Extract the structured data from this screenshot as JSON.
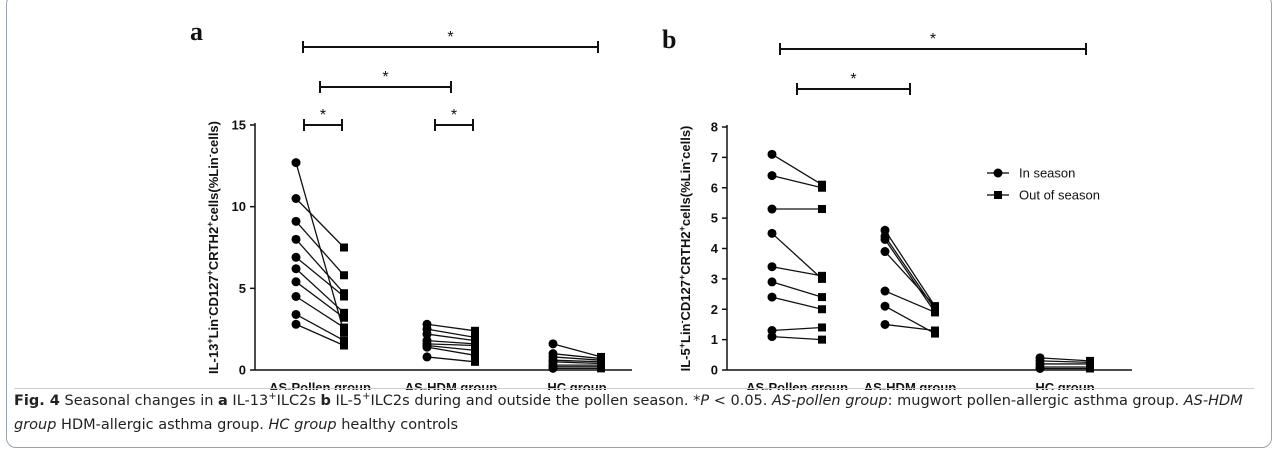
{
  "chart_data": [
    {
      "type": "paired",
      "panel": "a",
      "y_label": [
        "IL-13",
        "+",
        "Lin",
        "-",
        "CD127",
        "+",
        "CRTH2",
        "+",
        "cells(%Lin",
        "-",
        "cells)"
      ],
      "categories": [
        "AS-Pollen group",
        "AS-HDM group",
        "HC group"
      ],
      "ylim": [
        0,
        15
      ],
      "yticks": [
        0,
        5,
        10,
        15
      ],
      "series": [
        {
          "name": "In season",
          "marker": "circle",
          "color": "#000000",
          "values": [
            [
              12.7,
              10.5,
              9.1,
              8.0,
              6.9,
              6.2,
              5.4,
              4.5,
              3.4,
              2.8
            ],
            [
              2.8,
              2.5,
              2.2,
              1.8,
              1.6,
              1.5,
              1.4,
              0.8
            ],
            [
              1.6,
              1.0,
              0.8,
              0.6,
              0.5,
              0.3,
              0.2,
              0.1
            ]
          ]
        },
        {
          "name": "Out of season",
          "marker": "square",
          "color": "#000000",
          "values": [
            [
              2.3,
              7.5,
              5.8,
              4.7,
              4.5,
              3.5,
              3.2,
              2.6,
              1.8,
              1.5
            ],
            [
              2.4,
              2.0,
              1.8,
              1.6,
              1.5,
              1.2,
              0.9,
              0.5
            ],
            [
              0.8,
              0.7,
              0.6,
              0.5,
              0.4,
              0.3,
              0.2,
              0.1
            ]
          ]
        }
      ],
      "brackets": [
        {
          "label": "*",
          "group": "AS-Pollen group"
        },
        {
          "label": "*",
          "group": "AS-HDM group"
        },
        {
          "label": "*",
          "from": "AS-Pollen group",
          "to": "AS-HDM group"
        },
        {
          "label": "*",
          "from": "AS-Pollen group",
          "to": "HC group"
        }
      ]
    },
    {
      "type": "paired",
      "panel": "b",
      "y_label": [
        "IL-5",
        "+",
        "Lin",
        "-",
        "CD127",
        "+",
        "CRTH2",
        "+",
        "cells(%Lin",
        "-",
        "cells)"
      ],
      "categories": [
        "AS-Pollen group",
        "AS-HDM group",
        "HC group"
      ],
      "ylim": [
        0,
        8
      ],
      "yticks": [
        0,
        1,
        2,
        3,
        4,
        5,
        6,
        7,
        8
      ],
      "legend": "upper right",
      "series": [
        {
          "name": "In season",
          "marker": "circle",
          "color": "#000000",
          "values": [
            [
              7.1,
              6.4,
              5.3,
              4.5,
              3.4,
              2.9,
              2.4,
              1.3,
              1.1
            ],
            [
              4.6,
              4.4,
              4.3,
              3.9,
              2.6,
              2.1,
              1.5
            ],
            [
              0.4,
              0.3,
              0.2,
              0.1,
              0.05
            ]
          ]
        },
        {
          "name": "Out of season",
          "marker": "square",
          "color": "#000000",
          "values": [
            [
              6.1,
              6.0,
              5.3,
              3.0,
              3.1,
              2.4,
              2.0,
              1.4,
              1.0
            ],
            [
              2.1,
              2.0,
              1.9,
              2.1,
              1.9,
              1.2,
              1.3
            ],
            [
              0.3,
              0.25,
              0.2,
              0.1,
              0.05
            ]
          ]
        }
      ],
      "brackets": [
        {
          "label": "*",
          "from": "AS-Pollen group",
          "to": "AS-HDM group"
        },
        {
          "label": "*",
          "from": "AS-Pollen group",
          "to": "HC group"
        }
      ]
    }
  ],
  "caption": [
    {
      "t": "Fig. 4",
      "s": "b"
    },
    {
      "t": " Seasonal changes in "
    },
    {
      "t": "a",
      "s": "b"
    },
    {
      "t": " IL-13"
    },
    {
      "t": "+",
      "s": "sup"
    },
    {
      "t": "ILC2s "
    },
    {
      "t": "b",
      "s": "b"
    },
    {
      "t": " IL-5"
    },
    {
      "t": "+",
      "s": "sup"
    },
    {
      "t": "ILC2s during and outside the pollen season. *"
    },
    {
      "t": "P",
      "s": "i"
    },
    {
      "t": " < 0.05. "
    },
    {
      "t": "AS-pollen group",
      "s": "i"
    },
    {
      "t": ": mugwort pollen-allergic asthma group. "
    },
    {
      "t": "AS-HDM group",
      "s": "i"
    },
    {
      "t": " HDM-allergic asthma group. "
    },
    {
      "t": "HC group",
      "s": "i"
    },
    {
      "t": " healthy controls"
    }
  ]
}
